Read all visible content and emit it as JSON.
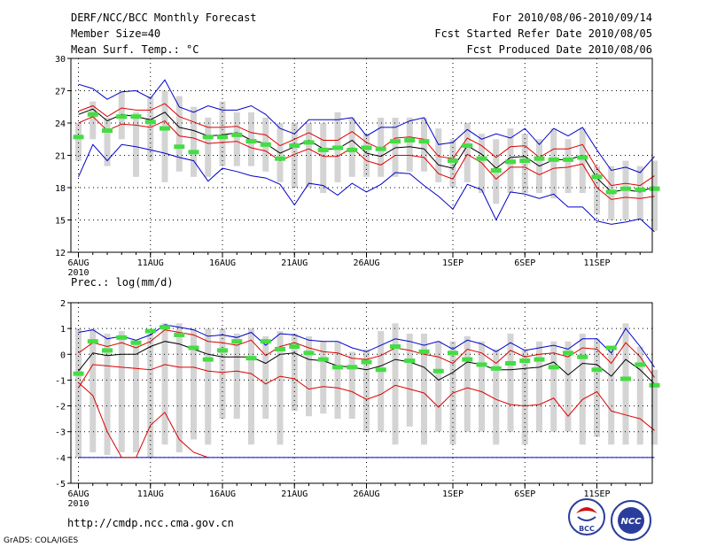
{
  "header": {
    "title": "DERF/NCC/BCC Monthly Forecast",
    "member_size": "Member Size=40",
    "variable_top": "Mean Surf. Temp.: °C",
    "range": "For 2010/08/06-2010/09/14",
    "started": "Fcst Started Refer Date 2010/08/05",
    "produced": "Fcst Produced Date 2010/08/06"
  },
  "footer": {
    "url": "http://cmdp.ncc.cma.gov.cn",
    "credit": "GrADS: COLA/IGES",
    "logo_bcc": "BCC",
    "logo_ncc": "NCC"
  },
  "colors": {
    "max": "#0000cc",
    "min": "#0000cc",
    "upper": "#dd0000",
    "lower": "#dd0000",
    "mean": "#000000",
    "obs": "#44dd44",
    "box": "#d4d4d4"
  },
  "chart_data": [
    {
      "type": "line",
      "title": "Mean Surf. Temp.: °C",
      "ylim": [
        12,
        30
      ],
      "yticks": [
        "12",
        "15",
        "18",
        "21",
        "24",
        "27",
        "30"
      ],
      "xticks": [
        {
          "day": 0,
          "label": "6AUG",
          "sub": "2010"
        },
        {
          "day": 5,
          "label": "11AUG"
        },
        {
          "day": 10,
          "label": "16AUG"
        },
        {
          "day": 15,
          "label": "21AUG"
        },
        {
          "day": 20,
          "label": "26AUG"
        },
        {
          "day": 26,
          "label": "1SEP"
        },
        {
          "day": 31,
          "label": "6SEP"
        },
        {
          "day": 36,
          "label": "11SEP"
        }
      ],
      "days": 40,
      "series": [
        {
          "name": "max",
          "values": [
            27.6,
            27.2,
            26.2,
            26.9,
            27.0,
            26.3,
            28.0,
            25.5,
            25.0,
            25.6,
            25.2,
            25.2,
            25.6,
            24.8,
            23.5,
            23.0,
            24.3,
            24.3,
            24.3,
            24.5,
            22.8,
            23.6,
            23.6,
            24.2,
            24.5,
            22.0,
            22.2,
            23.4,
            22.5,
            23.0,
            22.6,
            23.5,
            22.0,
            23.5,
            22.8,
            23.6,
            21.5,
            19.6,
            19.9,
            19.4,
            20.9
          ]
        },
        {
          "name": "upper",
          "values": [
            25.1,
            25.6,
            24.6,
            25.4,
            25.2,
            25.2,
            25.8,
            24.6,
            24.1,
            23.6,
            23.6,
            23.7,
            23.1,
            22.9,
            21.9,
            22.5,
            23.1,
            22.4,
            22.4,
            23.2,
            22.2,
            21.6,
            22.6,
            22.7,
            22.5,
            20.9,
            20.7,
            22.6,
            21.9,
            20.8,
            21.8,
            21.9,
            20.8,
            21.6,
            21.6,
            22.0,
            19.8,
            18.2,
            18.4,
            18.2,
            19.1
          ]
        },
        {
          "name": "mean",
          "values": [
            24.8,
            25.3,
            24.2,
            24.8,
            24.6,
            24.3,
            25.0,
            23.6,
            23.3,
            22.8,
            22.9,
            23.1,
            22.4,
            22.1,
            21.2,
            21.8,
            22.4,
            21.6,
            21.6,
            22.4,
            21.2,
            20.9,
            21.7,
            21.8,
            21.6,
            20.1,
            19.8,
            21.9,
            21.1,
            19.8,
            20.8,
            20.9,
            20.0,
            20.6,
            20.6,
            21.0,
            18.9,
            17.6,
            17.8,
            17.6,
            18.1
          ]
        },
        {
          "name": "lower",
          "values": [
            24.0,
            24.6,
            23.3,
            23.9,
            23.8,
            23.6,
            24.2,
            22.8,
            22.6,
            22.1,
            22.2,
            22.3,
            21.7,
            21.4,
            20.5,
            21.1,
            21.6,
            20.9,
            20.9,
            21.7,
            20.5,
            20.1,
            21.0,
            21.0,
            20.8,
            19.3,
            18.8,
            21.1,
            20.3,
            18.8,
            19.9,
            19.9,
            19.2,
            19.8,
            19.9,
            20.2,
            18.0,
            16.9,
            17.1,
            17.0,
            17.2
          ]
        },
        {
          "name": "min",
          "values": [
            19.0,
            22.0,
            20.5,
            22.0,
            21.8,
            21.5,
            21.2,
            20.8,
            20.5,
            18.6,
            19.8,
            19.5,
            19.1,
            18.9,
            18.3,
            16.4,
            18.4,
            18.2,
            17.3,
            18.4,
            17.6,
            18.3,
            19.4,
            19.3,
            18.2,
            17.2,
            16.0,
            18.3,
            17.8,
            15.0,
            17.6,
            17.4,
            17.0,
            17.4,
            16.2,
            16.2,
            14.9,
            14.6,
            14.8,
            15.1,
            13.9
          ]
        },
        {
          "name": "observed",
          "values": [
            22.7,
            24.8,
            23.3,
            24.6,
            24.6,
            24.1,
            23.5,
            21.8,
            21.3,
            22.7,
            22.7,
            22.9,
            22.3,
            22.0,
            20.7,
            21.9,
            22.2,
            21.5,
            21.7,
            21.5,
            21.7,
            21.6,
            22.3,
            22.4,
            22.3,
            null,
            20.5,
            21.9,
            20.7,
            19.6,
            20.4,
            20.5,
            20.7,
            20.6,
            20.6,
            20.8,
            19.0,
            17.6,
            17.9,
            17.8,
            17.9
          ]
        }
      ],
      "boxes": [
        [
          20.5,
          24.0
        ],
        [
          22.5,
          26.0
        ],
        [
          20.0,
          24.5
        ],
        [
          22.5,
          27.0
        ],
        [
          19.0,
          25.0
        ],
        [
          20.5,
          26.5
        ],
        [
          18.5,
          27.0
        ],
        [
          19.5,
          26.5
        ],
        [
          19.0,
          25.5
        ],
        [
          19.0,
          24.5
        ],
        [
          20.0,
          26.0
        ],
        [
          20.0,
          25.0
        ],
        [
          20.0,
          25.0
        ],
        [
          19.5,
          24.5
        ],
        [
          18.5,
          24.0
        ],
        [
          18.0,
          24.0
        ],
        [
          18.0,
          24.0
        ],
        [
          17.5,
          24.0
        ],
        [
          18.5,
          25.0
        ],
        [
          19.0,
          24.5
        ],
        [
          19.0,
          23.0
        ],
        [
          19.0,
          24.5
        ],
        [
          19.0,
          24.5
        ],
        [
          19.5,
          24.5
        ],
        [
          19.5,
          24.5
        ],
        [
          18.5,
          23.5
        ],
        [
          18.0,
          22.5
        ],
        [
          18.5,
          24.0
        ],
        [
          17.5,
          23.0
        ],
        [
          16.5,
          22.5
        ],
        [
          17.5,
          23.5
        ],
        [
          17.5,
          23.0
        ],
        [
          17.5,
          22.5
        ],
        [
          17.0,
          23.5
        ],
        [
          17.5,
          22.5
        ],
        [
          17.5,
          23.5
        ],
        [
          15.5,
          20.0
        ],
        [
          15.0,
          20.0
        ],
        [
          15.0,
          20.5
        ],
        [
          15.0,
          20.0
        ],
        [
          14.0,
          20.5
        ]
      ]
    },
    {
      "type": "line",
      "title": "Prec.: log(mm/d)",
      "ylim": [
        -5,
        2
      ],
      "yticks": [
        "-5",
        "-4",
        "-3",
        "-2",
        "-1",
        "0",
        "1",
        "2"
      ],
      "xticks": [
        {
          "day": 0,
          "label": "6AUG",
          "sub": "2010"
        },
        {
          "day": 5,
          "label": "11AUG"
        },
        {
          "day": 10,
          "label": "16AUG"
        },
        {
          "day": 15,
          "label": "21AUG"
        },
        {
          "day": 20,
          "label": "26AUG"
        },
        {
          "day": 26,
          "label": "1SEP"
        },
        {
          "day": 31,
          "label": "6SEP"
        },
        {
          "day": 36,
          "label": "11SEP"
        }
      ],
      "days": 40,
      "series": [
        {
          "name": "max",
          "values": [
            0.85,
            0.95,
            0.6,
            0.7,
            0.55,
            0.75,
            1.15,
            1.05,
            0.95,
            0.7,
            0.75,
            0.65,
            0.85,
            0.35,
            0.8,
            0.75,
            0.55,
            0.5,
            0.5,
            0.25,
            0.1,
            0.35,
            0.6,
            0.5,
            0.35,
            0.5,
            0.2,
            0.55,
            0.4,
            0.1,
            0.45,
            0.15,
            0.25,
            0.35,
            0.2,
            0.6,
            0.6,
            0.05,
            1.0,
            0.3,
            -0.5
          ]
        },
        {
          "name": "upper",
          "values": [
            0.05,
            0.45,
            0.3,
            0.45,
            0.25,
            0.5,
            0.95,
            0.85,
            0.75,
            0.5,
            0.45,
            0.35,
            0.55,
            -0.05,
            0.3,
            0.45,
            0.25,
            0.1,
            0.05,
            -0.15,
            -0.2,
            -0.05,
            0.25,
            0.15,
            0.0,
            -0.1,
            -0.35,
            0.2,
            0.05,
            -0.35,
            0.15,
            -0.1,
            0.0,
            0.05,
            -0.1,
            0.25,
            0.2,
            -0.35,
            0.45,
            -0.1,
            -0.9
          ]
        },
        {
          "name": "mean",
          "values": [
            -0.65,
            0.05,
            -0.05,
            0.0,
            0.0,
            0.3,
            0.5,
            0.4,
            0.2,
            0.0,
            -0.1,
            -0.1,
            -0.1,
            -0.35,
            0.0,
            0.05,
            -0.2,
            -0.25,
            -0.45,
            -0.5,
            -0.6,
            -0.45,
            -0.2,
            -0.3,
            -0.5,
            -1.0,
            -0.7,
            -0.3,
            -0.4,
            -0.6,
            -0.6,
            -0.55,
            -0.5,
            -0.3,
            -0.8,
            -0.35,
            -0.4,
            -0.85,
            -0.2,
            -0.6,
            -1.15
          ]
        },
        {
          "name": "lower",
          "values": [
            -1.3,
            -0.4,
            -0.45,
            -0.5,
            -0.55,
            -0.6,
            -0.4,
            -0.5,
            -0.5,
            -0.65,
            -0.7,
            -0.65,
            -0.75,
            -1.15,
            -0.85,
            -0.95,
            -1.35,
            -1.25,
            -1.3,
            -1.45,
            -1.75,
            -1.55,
            -1.2,
            -1.35,
            -1.5,
            -2.05,
            -1.5,
            -1.3,
            -1.45,
            -1.75,
            -1.95,
            -2.0,
            -1.95,
            -1.7,
            -2.4,
            -1.75,
            -1.45,
            -2.2,
            -2.35,
            -2.5,
            -2.95
          ]
        },
        {
          "name": "min",
          "values": [
            -4,
            -4,
            -4,
            -4,
            -4,
            -4,
            -4,
            -4,
            -4,
            -4,
            -4,
            -4,
            -4,
            -4,
            -4,
            -4,
            -4,
            -4,
            -4,
            -4,
            -4,
            -4,
            -4,
            -4,
            -4,
            -4,
            -4,
            -4,
            -4,
            -4,
            -4,
            -4,
            -4,
            -4,
            -4,
            -4,
            -4,
            -4,
            -4,
            -4,
            -4
          ]
        },
        {
          "name": "min_red",
          "values": [
            -1.1,
            -1.6,
            -3.0,
            -4.0,
            -4.0,
            -2.75,
            -2.25,
            -3.3,
            -3.8,
            -4.0,
            null,
            null,
            null,
            null,
            null,
            null,
            null,
            null,
            null,
            null,
            null,
            null,
            null,
            null,
            null,
            null,
            null,
            null,
            null,
            null,
            null,
            null,
            null,
            null,
            null,
            null,
            null,
            null,
            null,
            null,
            null
          ]
        },
        {
          "name": "observed",
          "values": [
            -0.75,
            0.5,
            0.15,
            0.65,
            0.45,
            0.9,
            1.05,
            0.75,
            0.25,
            -0.2,
            0.15,
            0.5,
            -0.15,
            0.5,
            0.2,
            0.3,
            0.05,
            -0.2,
            -0.5,
            -0.5,
            -0.3,
            -0.6,
            0.3,
            -0.25,
            0.1,
            -0.65,
            0.05,
            -0.2,
            -0.4,
            -0.55,
            -0.35,
            -0.25,
            -0.2,
            -0.5,
            0.05,
            -0.1,
            -0.6,
            0.25,
            -0.95,
            -0.4,
            -1.2
          ]
        }
      ],
      "boxes": [
        [
          -4,
          1.0
        ],
        [
          -3.8,
          1.0
        ],
        [
          -3.9,
          0.8
        ],
        [
          -3.8,
          0.9
        ],
        [
          -3.8,
          0.5
        ],
        [
          -4,
          0.8
        ],
        [
          -3.5,
          1.2
        ],
        [
          -3.8,
          1.2
        ],
        [
          -3.3,
          1.0
        ],
        [
          -3.5,
          1.0
        ],
        [
          -2.5,
          1.0
        ],
        [
          -2.5,
          0.8
        ],
        [
          -3.5,
          1.0
        ],
        [
          -2.5,
          0.7
        ],
        [
          -3.5,
          0.9
        ],
        [
          -2.2,
          0.8
        ],
        [
          -2.4,
          0.7
        ],
        [
          -2.3,
          0.5
        ],
        [
          -2.5,
          0.5
        ],
        [
          -2.5,
          0.1
        ],
        [
          -3.0,
          0.2
        ],
        [
          -3.0,
          0.9
        ],
        [
          -3.5,
          1.2
        ],
        [
          -2.8,
          0.8
        ],
        [
          -3.5,
          0.8
        ],
        [
          -3.0,
          0.5
        ],
        [
          -3.5,
          0.5
        ],
        [
          -3.0,
          0.7
        ],
        [
          -3.0,
          0.5
        ],
        [
          -3.5,
          0.2
        ],
        [
          -3.0,
          0.8
        ],
        [
          -3.5,
          0.2
        ],
        [
          -3.0,
          0.5
        ],
        [
          -3.0,
          0.5
        ],
        [
          -3.0,
          0.5
        ],
        [
          -3.5,
          0.8
        ],
        [
          -3.2,
          0.6
        ],
        [
          -3.5,
          0.2
        ],
        [
          -3.5,
          1.2
        ],
        [
          -3.5,
          0.3
        ],
        [
          -3.5,
          -0.6
        ]
      ]
    }
  ]
}
